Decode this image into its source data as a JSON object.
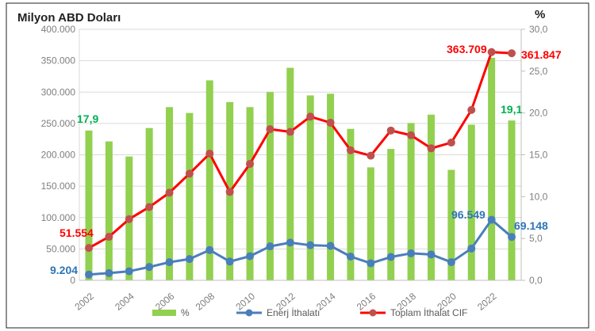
{
  "chart_data": {
    "type": "bar+line",
    "title": "Milyon ABD Doları",
    "y2label": "%",
    "years": [
      2002,
      2003,
      2004,
      2005,
      2006,
      2007,
      2008,
      2009,
      2010,
      2011,
      2012,
      2013,
      2014,
      2015,
      2016,
      2017,
      2018,
      2019,
      2020,
      2021,
      2022,
      2023
    ],
    "xtick_labels": [
      "2002",
      "2004",
      "2006",
      "2008",
      "2010",
      "2012",
      "2014",
      "2016",
      "2018",
      "2020",
      "2022"
    ],
    "ylim": [
      0,
      400000
    ],
    "y_ticks": [
      "0",
      "50.000",
      "100.000",
      "150.000",
      "200.000",
      "250.000",
      "300.000",
      "350.000",
      "400.000"
    ],
    "y2lim": [
      0,
      30
    ],
    "y2_ticks": [
      "0,0",
      "5,0",
      "10,0",
      "15,0",
      "20,0",
      "25,0",
      "30,0"
    ],
    "grid": true,
    "legend_position": "bottom",
    "series": [
      {
        "name": "%",
        "type": "bar",
        "axis": "right",
        "color": "#92d050",
        "values": [
          17.9,
          16.6,
          14.8,
          18.2,
          20.7,
          20.0,
          23.9,
          21.3,
          20.7,
          22.5,
          25.4,
          22.1,
          22.3,
          18.1,
          13.5,
          15.7,
          18.8,
          19.8,
          13.2,
          18.6,
          26.6,
          19.1
        ]
      },
      {
        "name": "Enerj İthalatı",
        "type": "line",
        "axis": "left",
        "color": "#4a7ebb",
        "marker_color": "#4a7ebb",
        "values": [
          9204,
          11575,
          14407,
          21255,
          28859,
          33883,
          48281,
          29905,
          38497,
          54116,
          60117,
          55917,
          54889,
          37843,
          27169,
          37204,
          42993,
          41182,
          28934,
          50706,
          96549,
          69148
        ]
      },
      {
        "name": "Toplam İthalat CIF",
        "type": "line",
        "axis": "left",
        "color": "#ff0000",
        "marker_color": "#c0504d",
        "values": [
          51554,
          69340,
          97540,
          116774,
          139576,
          170063,
          201964,
          140928,
          185544,
          240842,
          236545,
          260823,
          251142,
          207234,
          198618,
          238715,
          231152,
          210345,
          219517,
          271426,
          363709,
          361847
        ]
      }
    ],
    "annotations": {
      "bar_first": "17,9",
      "bar_last": "19,1",
      "energy_first": "9.204",
      "energy_peak": "96.549",
      "energy_last": "69.148",
      "total_first": "51.554",
      "total_peak": "363.709",
      "total_last": "361.847"
    }
  }
}
